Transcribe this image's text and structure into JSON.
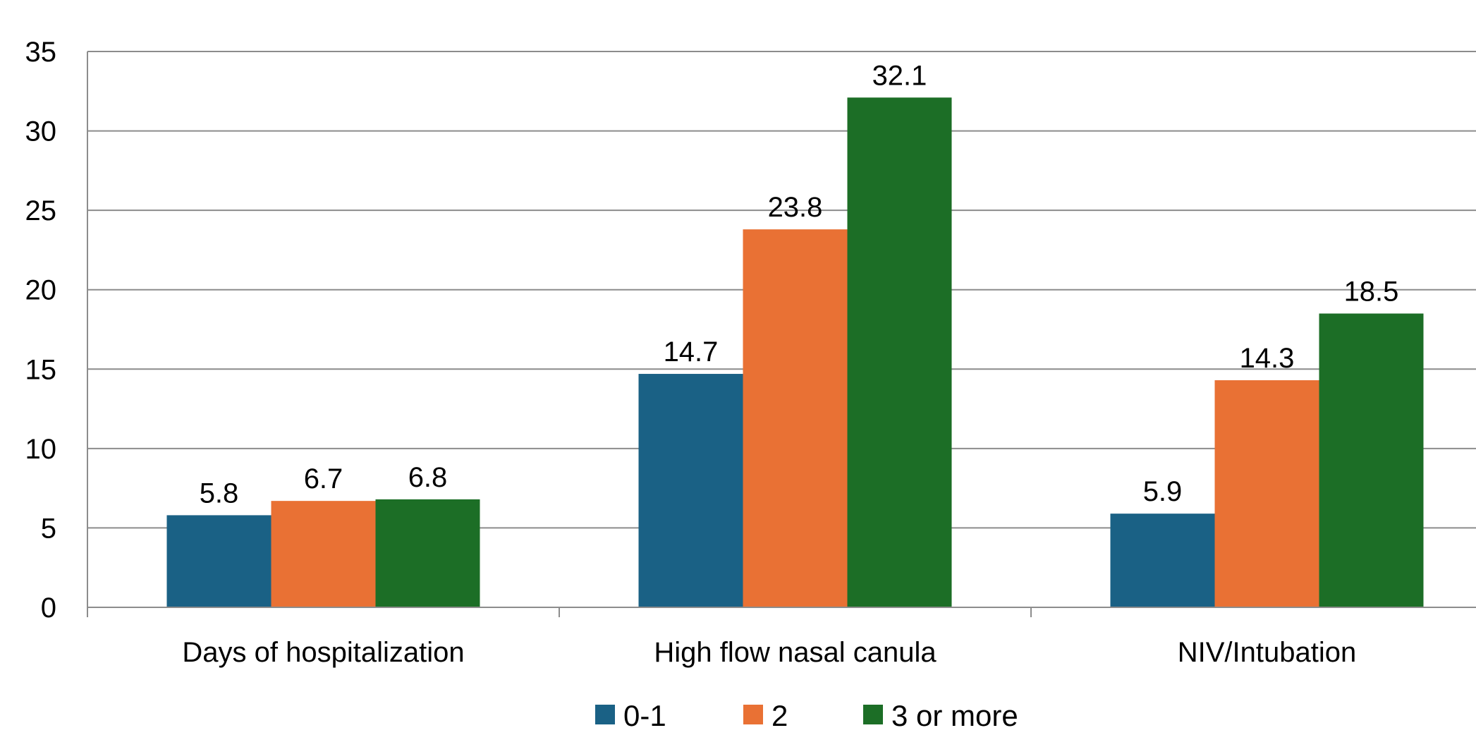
{
  "chart_data": {
    "type": "bar",
    "title": "",
    "xlabel": "",
    "ylabel": "",
    "categories": [
      "Days of hospitalization",
      "High flow nasal canula",
      "NIV/Intubation"
    ],
    "series": [
      {
        "name": "0-1",
        "color": "#1A6185",
        "values": [
          5.8,
          14.7,
          5.9
        ]
      },
      {
        "name": "2",
        "color": "#E97134",
        "values": [
          6.7,
          23.8,
          14.3
        ]
      },
      {
        "name": "3 or more",
        "color": "#1C6E26",
        "values": [
          6.8,
          32.1,
          18.5
        ]
      }
    ],
    "ylim": [
      0,
      35
    ],
    "yticks": [
      0,
      5,
      10,
      15,
      20,
      25,
      30,
      35
    ],
    "grid": true,
    "legend_position": "bottom-center",
    "data_labels": true
  }
}
